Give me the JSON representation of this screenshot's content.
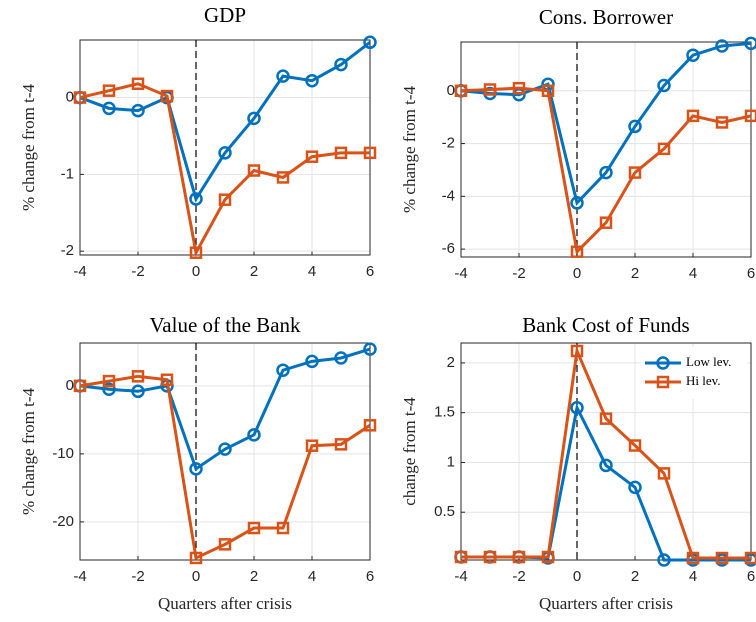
{
  "chart_data": [
    {
      "type": "line",
      "title": "GDP",
      "y_label": "% change from t-4",
      "x": [
        -4,
        -3,
        -2,
        -1,
        0,
        1,
        2,
        3,
        4,
        5,
        6
      ],
      "xlim": [
        -4,
        6
      ],
      "xticks": [
        -4,
        -2,
        0,
        2,
        4,
        6
      ],
      "ylim": [
        -2.05,
        0.75
      ],
      "yticks": [
        -2,
        -1,
        0
      ],
      "grid": true,
      "vline": 0,
      "series": [
        {
          "color": "#0072BD",
          "marker": "circle",
          "values": [
            0,
            -0.14,
            -0.17,
            0,
            -1.32,
            -0.72,
            -0.27,
            0.28,
            0.22,
            0.43,
            0.72
          ]
        },
        {
          "color": "#D95319",
          "marker": "square",
          "values": [
            0,
            0.09,
            0.18,
            0.02,
            -2.02,
            -1.33,
            -0.95,
            -1.04,
            -0.77,
            -0.72,
            -0.72
          ]
        }
      ]
    },
    {
      "type": "line",
      "title": "Cons. Borrower",
      "y_label": "% change from t-4",
      "x": [
        -4,
        -3,
        -2,
        -1,
        0,
        1,
        2,
        3,
        4,
        5,
        6
      ],
      "xlim": [
        -4,
        6
      ],
      "xticks": [
        -4,
        -2,
        0,
        2,
        4,
        6
      ],
      "ylim": [
        -6.3,
        1.85
      ],
      "yticks": [
        -6,
        -4,
        -2,
        0
      ],
      "grid": true,
      "vline": 0,
      "series": [
        {
          "color": "#0072BD",
          "marker": "circle",
          "values": [
            0,
            -0.1,
            -0.15,
            0.25,
            -4.25,
            -3.1,
            -1.35,
            0.2,
            1.35,
            1.7,
            1.8
          ]
        },
        {
          "color": "#D95319",
          "marker": "square",
          "values": [
            0,
            0.05,
            0.1,
            0,
            -6.1,
            -5.0,
            -3.1,
            -2.2,
            -0.95,
            -1.2,
            -0.95
          ]
        }
      ]
    },
    {
      "type": "line",
      "title": "Value of the Bank",
      "y_label": "% change from t-4",
      "x_label": "Quarters after crisis",
      "x": [
        -4,
        -3,
        -2,
        -1,
        0,
        1,
        2,
        3,
        4,
        5,
        6
      ],
      "xlim": [
        -4,
        6
      ],
      "xticks": [
        -4,
        -2,
        0,
        2,
        4,
        6
      ],
      "ylim": [
        -25.6,
        6.3
      ],
      "yticks": [
        -20,
        -10,
        0
      ],
      "grid": true,
      "vline": 0,
      "series": [
        {
          "color": "#0072BD",
          "marker": "circle",
          "values": [
            0,
            -0.5,
            -0.8,
            0,
            -12.2,
            -9.3,
            -7.2,
            2.3,
            3.6,
            4.1,
            5.4
          ]
        },
        {
          "color": "#D95319",
          "marker": "square",
          "values": [
            0,
            0.7,
            1.4,
            0.9,
            -25.3,
            -23.3,
            -20.9,
            -20.9,
            -8.8,
            -8.6,
            -5.8
          ]
        }
      ]
    },
    {
      "type": "line",
      "title": "Bank Cost of Funds",
      "y_label": "change from t-4",
      "x_label": "Quarters after crisis",
      "x": [
        -4,
        -3,
        -2,
        -1,
        0,
        1,
        2,
        3,
        4,
        5,
        6
      ],
      "xlim": [
        -4,
        6
      ],
      "xticks": [
        -4,
        -2,
        0,
        2,
        4,
        6
      ],
      "ylim": [
        0.02,
        2.2
      ],
      "yticks": [
        0.5,
        1,
        1.5,
        2
      ],
      "grid": true,
      "vline": 0,
      "legend": "northeast",
      "series": [
        {
          "name": "Low lev.",
          "color": "#0072BD",
          "marker": "circle",
          "values": [
            0.05,
            0.05,
            0.05,
            0.04,
            1.55,
            0.97,
            0.75,
            0.02,
            0.02,
            0.02,
            0.02
          ]
        },
        {
          "name": "Hi lev.",
          "color": "#D95319",
          "marker": "square",
          "values": [
            0.05,
            0.05,
            0.05,
            0.05,
            2.12,
            1.44,
            1.17,
            0.89,
            0.04,
            0.04,
            0.04
          ]
        }
      ]
    }
  ]
}
